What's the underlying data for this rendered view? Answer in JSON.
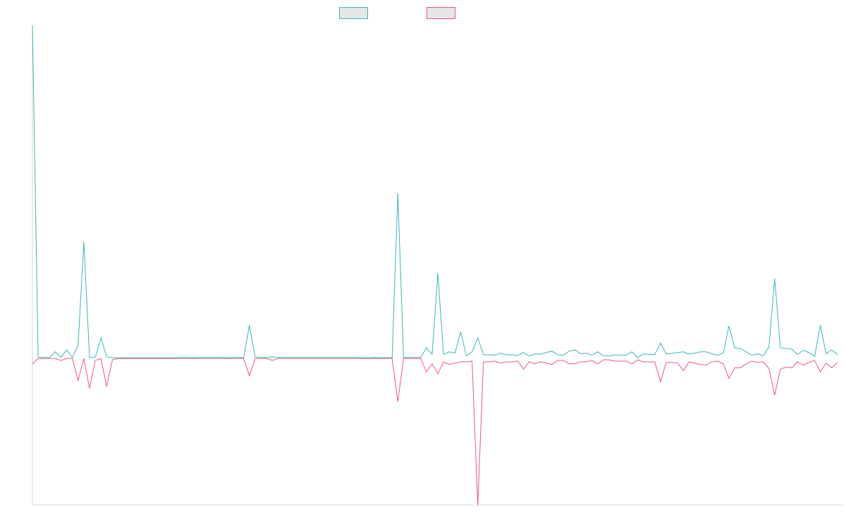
{
  "chart_data": {
    "type": "line",
    "grid": false,
    "legend_placement": "top-center",
    "ylim": [
      -220,
      500
    ],
    "xlim": [
      0,
      142
    ],
    "series": [
      {
        "color": "#36b9b6",
        "fill": "#e6e6e6",
        "values": [
          500,
          2,
          1.5,
          1.5,
          10,
          1.5,
          13,
          1.5,
          20,
          175,
          1.5,
          1.5,
          31,
          2.5,
          1,
          1,
          1,
          1,
          1,
          1,
          1,
          1,
          1,
          1,
          1,
          1,
          1.5,
          1.5,
          1,
          1.5,
          1.5,
          1.5,
          1.5,
          1.5,
          1,
          1.5,
          1.5,
          1,
          50,
          2.5,
          1.5,
          1.5,
          2.5,
          1.5,
          1.5,
          1.5,
          1.5,
          1.5,
          1.5,
          1.5,
          1.5,
          1.5,
          1.5,
          1.5,
          1.5,
          1.5,
          1.5,
          1.5,
          1,
          1,
          1.5,
          1,
          1.5,
          1,
          248,
          1.5,
          1.5,
          1.5,
          1.5,
          16,
          6,
          128,
          6,
          10,
          8,
          40,
          4,
          10,
          31,
          5.5,
          5.5,
          5,
          8,
          5.5,
          5.5,
          4.5,
          9,
          3.5,
          7,
          6.5,
          9,
          11,
          5.5,
          5,
          11,
          13,
          7,
          8,
          5,
          10,
          4,
          3.5,
          5.5,
          5,
          5,
          10,
          1,
          7,
          6,
          6,
          23,
          7,
          7.5,
          9,
          10,
          6.5,
          8,
          10,
          10,
          7,
          5,
          8,
          49,
          16,
          15,
          10,
          5,
          7,
          4,
          17,
          120,
          16,
          15,
          14,
          6,
          12,
          9,
          3,
          50,
          7,
          13,
          6
        ]
      },
      {
        "color": "#f0557a",
        "fill": "#e6e6e6",
        "values": [
          -8,
          0,
          0,
          0,
          0,
          -3,
          0,
          0,
          -33,
          0,
          -45,
          -3,
          0,
          -42,
          -2,
          0,
          0,
          0,
          0,
          0,
          0,
          0,
          0,
          0,
          0,
          0,
          0,
          0,
          0,
          0,
          0,
          0,
          0,
          0,
          0,
          0,
          0,
          0,
          -26,
          0,
          0,
          0,
          -3,
          0,
          0,
          0,
          0,
          0,
          0,
          0,
          0,
          0,
          0,
          0,
          0,
          0,
          0,
          0,
          0,
          0,
          0,
          0,
          0,
          0,
          -65,
          0,
          0,
          0,
          0,
          -20,
          -8,
          -23,
          -5,
          -9,
          -7,
          -5,
          -5,
          -4,
          -220,
          -5,
          -5,
          -4,
          -7,
          -5,
          -5,
          -4,
          -16,
          -5,
          -8,
          -5,
          -7,
          -9,
          -3,
          -3,
          -8,
          -8,
          -5,
          -5,
          -3,
          -8,
          -2,
          -2,
          -4,
          -4,
          -4,
          -8,
          -2,
          -5,
          -5,
          -5,
          -35,
          -6,
          -6,
          -7,
          -18,
          -5,
          -7,
          -9,
          -10,
          -5,
          -4,
          -8,
          -30,
          -14,
          -14,
          -8,
          -4,
          -6,
          -5,
          -15,
          -55,
          -16,
          -13,
          -14,
          -5,
          -10,
          -6,
          -3,
          -20,
          -7,
          -14,
          -6
        ]
      }
    ]
  }
}
